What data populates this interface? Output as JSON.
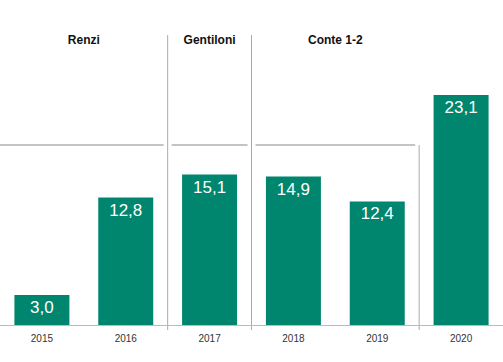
{
  "chart_data": {
    "type": "bar",
    "categories": [
      "2015",
      "2016",
      "2017",
      "2018",
      "2019",
      "2020"
    ],
    "values": [
      3.0,
      12.8,
      15.1,
      14.9,
      12.4,
      23.1
    ],
    "value_labels": [
      "3,0",
      "12,8",
      "15,1",
      "14,9",
      "12,4",
      "23,1"
    ],
    "color": "#00866e",
    "ylim": [
      0,
      25
    ],
    "yticks": [
      0,
      25
    ],
    "grid": false,
    "data_labels": true,
    "tick_labels": "x",
    "annotations": [
      {
        "text": "Renzi",
        "from": "2015",
        "to": "2016"
      },
      {
        "text": "Gentiloni",
        "from": "2017",
        "to": "2017"
      },
      {
        "text": "Conte 1-2",
        "from": "2018",
        "to": "2019"
      }
    ]
  }
}
